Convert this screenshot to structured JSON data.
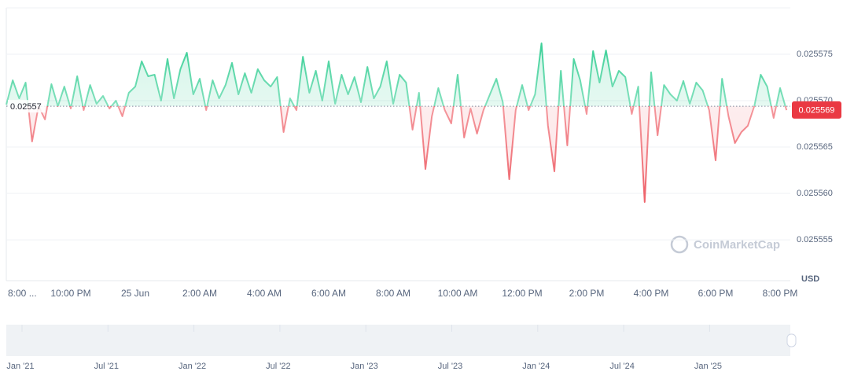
{
  "chart_data": {
    "type": "line",
    "categories": [
      "8:00 ...",
      null,
      null,
      null,
      null,
      null,
      null,
      null,
      null,
      null,
      "10:00 PM",
      null,
      null,
      null,
      null,
      null,
      null,
      null,
      null,
      null,
      "25 Jun",
      null,
      null,
      null,
      null,
      null,
      null,
      null,
      null,
      null,
      "2:00 AM",
      null,
      null,
      null,
      null,
      null,
      null,
      null,
      null,
      null,
      "4:00 AM",
      null,
      null,
      null,
      null,
      null,
      null,
      null,
      null,
      null,
      "6:00 AM",
      null,
      null,
      null,
      null,
      null,
      null,
      null,
      null,
      null,
      "8:00 AM",
      null,
      null,
      null,
      null,
      null,
      null,
      null,
      null,
      null,
      "10:00 AM",
      null,
      null,
      null,
      null,
      null,
      null,
      null,
      null,
      null,
      "12:00 PM",
      null,
      null,
      null,
      null,
      null,
      null,
      null,
      null,
      null,
      "2:00 PM",
      null,
      null,
      null,
      null,
      null,
      null,
      null,
      null,
      null,
      "4:00 PM",
      null,
      null,
      null,
      null,
      null,
      null,
      null,
      null,
      null,
      "6:00 PM",
      null,
      null,
      null,
      null,
      null,
      null,
      null,
      null,
      null,
      "8:00 PM",
      null
    ],
    "values": [
      0.02556958,
      0.0255722,
      0.02557025,
      0.02557195,
      0.0255656,
      0.02556941,
      0.02556797,
      0.02557178,
      0.02556941,
      0.02557152,
      0.02556915,
      0.02557263,
      0.02556898,
      0.02557169,
      0.02556966,
      0.02557051,
      0.02556915,
      0.02557,
      0.02556831,
      0.02557085,
      0.02557152,
      0.02557424,
      0.02557263,
      0.0255728,
      0.02557,
      0.02557449,
      0.02557025,
      0.02557339,
      0.02557517,
      0.02557068,
      0.02557237,
      0.02556898,
      0.0255722,
      0.02557025,
      0.02557169,
      0.02557407,
      0.02557068,
      0.02557296,
      0.02557085,
      0.02557339,
      0.0255722,
      0.02557152,
      0.02557254,
      0.02556661,
      0.02557025,
      0.02556898,
      0.02557474,
      0.02557085,
      0.02557322,
      0.02557,
      0.02557424,
      0.02556966,
      0.0255728,
      0.02557068,
      0.02557254,
      0.02556983,
      0.02557364,
      0.02557025,
      0.02557152,
      0.02557424,
      0.02556966,
      0.0255728,
      0.02557195,
      0.02556687,
      0.02557085,
      0.02556263,
      0.02556831,
      0.02557136,
      0.02556898,
      0.02556754,
      0.0255728,
      0.02556602,
      0.02556915,
      0.02556644,
      0.02556898,
      0.02557068,
      0.02557237,
      0.02556983,
      0.02556153,
      0.02556898,
      0.02557169,
      0.02556898,
      0.02557068,
      0.02557618,
      0.02556729,
      0.02556238,
      0.02557322,
      0.02556517,
      0.02557449,
      0.0255722,
      0.02556856,
      0.02557534,
      0.02557195,
      0.02557542,
      0.02557152,
      0.02557322,
      0.02557254,
      0.02556856,
      0.02557152,
      0.02555907,
      0.02557305,
      0.02556627,
      0.02557169,
      0.02557068,
      0.02557,
      0.02557212,
      0.02556966,
      0.02557195,
      0.0255711,
      0.02556898,
      0.02556356,
      0.02557237,
      0.02556831,
      0.02556543,
      0.02556661,
      0.02556729,
      0.02556941,
      0.0255728,
      0.02557152,
      0.02556814,
      0.02557136,
      0.02556898
    ],
    "up_color": "#16c784",
    "down_color": "#ea3943",
    "ylim": [
      0.0255506,
      0.02558
    ],
    "yticks": [
      0.025555,
      {
        "value": 0.02556,
        "label": "0.025560"
      },
      0.025565,
      {
        "value": 0.02557,
        "label": "0.025570"
      },
      0.025575
    ],
    "grid": true,
    "baseline": {
      "value": 0.0255694,
      "label": "0.02557"
    },
    "last_price": 0.025569,
    "unit": "USD",
    "watermark": "CoinMarketCap"
  },
  "navigator": {
    "labels": [
      "Jan '21",
      "Jul '21",
      "Jan '22",
      "Jul '22",
      "Jan '23",
      "Jul '23",
      "Jan '24",
      "Jul '24",
      "Jan '25"
    ]
  }
}
